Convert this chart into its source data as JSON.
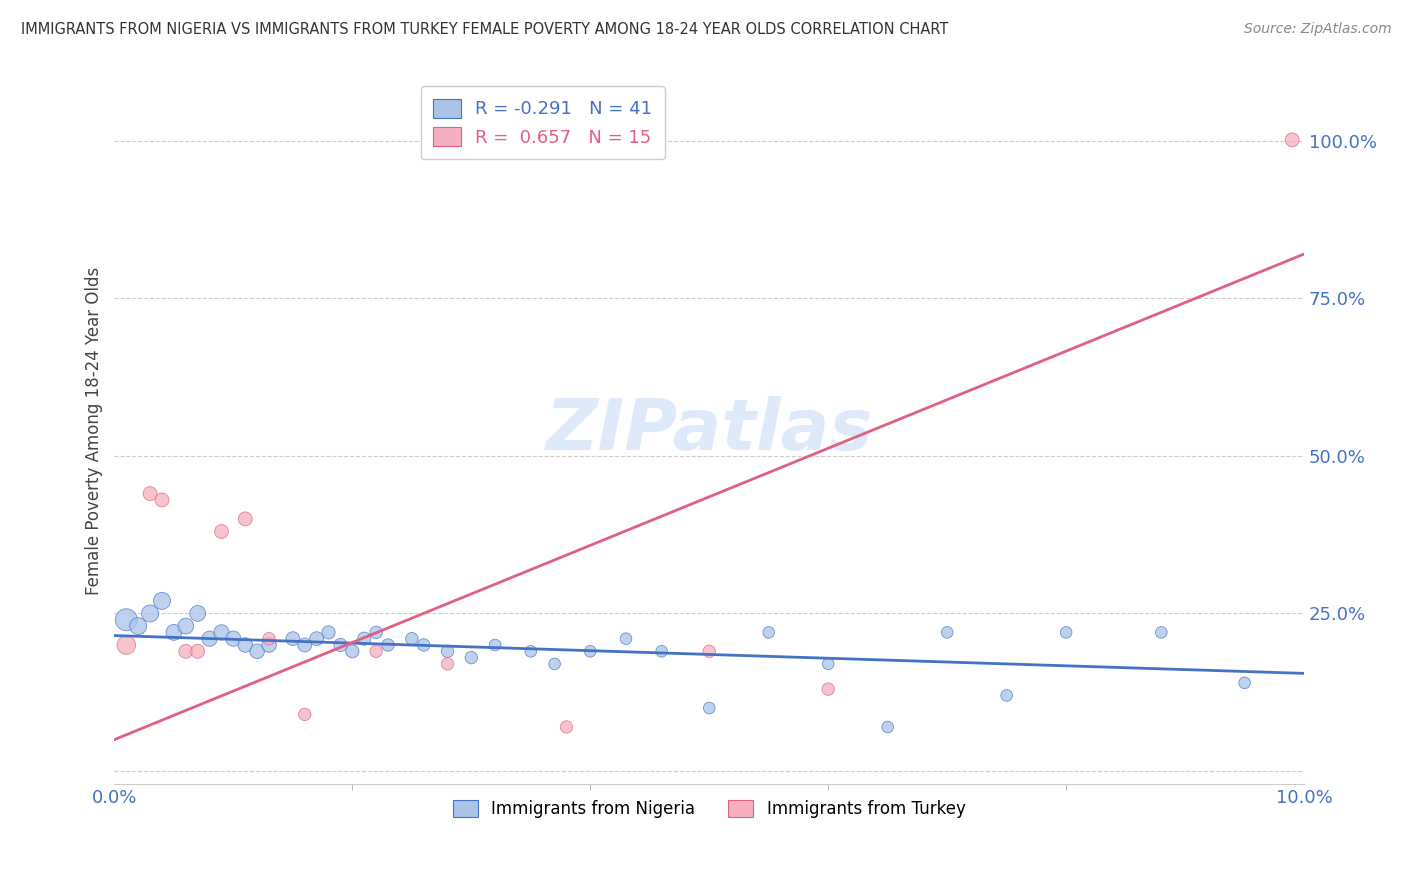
{
  "title": "IMMIGRANTS FROM NIGERIA VS IMMIGRANTS FROM TURKEY FEMALE POVERTY AMONG 18-24 YEAR OLDS CORRELATION CHART",
  "source": "Source: ZipAtlas.com",
  "ylabel": "Female Poverty Among 18-24 Year Olds",
  "xlim": [
    0,
    0.1
  ],
  "ylim": [
    -0.02,
    1.1
  ],
  "yticks": [
    0.0,
    0.25,
    0.5,
    0.75,
    1.0
  ],
  "ytick_labels": [
    "",
    "25.0%",
    "50.0%",
    "75.0%",
    "100.0%"
  ],
  "xticks": [
    0.0,
    0.1
  ],
  "xtick_labels": [
    "0.0%",
    "10.0%"
  ],
  "watermark": "ZIPatlas",
  "nigeria_R": -0.291,
  "nigeria_N": 41,
  "turkey_R": 0.657,
  "turkey_N": 15,
  "nigeria_color": "#aac4e8",
  "turkey_color": "#f5afc0",
  "nigeria_line_color": "#4472c4",
  "turkey_line_color": "#e06080",
  "nigeria_x": [
    0.001,
    0.002,
    0.003,
    0.004,
    0.005,
    0.006,
    0.007,
    0.008,
    0.009,
    0.01,
    0.011,
    0.012,
    0.013,
    0.015,
    0.016,
    0.017,
    0.018,
    0.019,
    0.02,
    0.021,
    0.022,
    0.023,
    0.025,
    0.026,
    0.028,
    0.03,
    0.032,
    0.035,
    0.037,
    0.04,
    0.043,
    0.046,
    0.05,
    0.055,
    0.06,
    0.065,
    0.07,
    0.075,
    0.08,
    0.088,
    0.095
  ],
  "nigeria_y": [
    0.24,
    0.23,
    0.25,
    0.27,
    0.22,
    0.23,
    0.25,
    0.21,
    0.22,
    0.21,
    0.2,
    0.19,
    0.2,
    0.21,
    0.2,
    0.21,
    0.22,
    0.2,
    0.19,
    0.21,
    0.22,
    0.2,
    0.21,
    0.2,
    0.19,
    0.18,
    0.2,
    0.19,
    0.17,
    0.19,
    0.21,
    0.19,
    0.1,
    0.22,
    0.17,
    0.07,
    0.22,
    0.12,
    0.22,
    0.22,
    0.14
  ],
  "nigeria_size": [
    250,
    150,
    150,
    150,
    130,
    130,
    130,
    120,
    120,
    120,
    110,
    110,
    110,
    100,
    100,
    100,
    90,
    90,
    90,
    90,
    80,
    80,
    80,
    80,
    80,
    80,
    70,
    70,
    70,
    70,
    70,
    70,
    70,
    70,
    70,
    70,
    70,
    70,
    70,
    70,
    70
  ],
  "turkey_x": [
    0.001,
    0.003,
    0.004,
    0.006,
    0.007,
    0.009,
    0.011,
    0.013,
    0.016,
    0.022,
    0.028,
    0.038,
    0.05,
    0.06,
    0.099
  ],
  "turkey_y": [
    0.2,
    0.44,
    0.43,
    0.19,
    0.19,
    0.38,
    0.4,
    0.21,
    0.09,
    0.19,
    0.17,
    0.07,
    0.19,
    0.13,
    1.001
  ],
  "turkey_size": [
    180,
    100,
    100,
    100,
    100,
    100,
    100,
    80,
    80,
    80,
    80,
    80,
    80,
    80,
    100
  ],
  "nig_trend_x": [
    0.0,
    0.1
  ],
  "nig_trend_y": [
    0.215,
    0.155
  ],
  "tur_trend_x": [
    0.0,
    0.1
  ],
  "tur_trend_y": [
    0.05,
    0.82
  ],
  "bg_color": "#ffffff",
  "grid_color": "#cccccc",
  "title_color": "#333333",
  "axis_label_color": "#444444",
  "tick_label_color": "#4472c4"
}
